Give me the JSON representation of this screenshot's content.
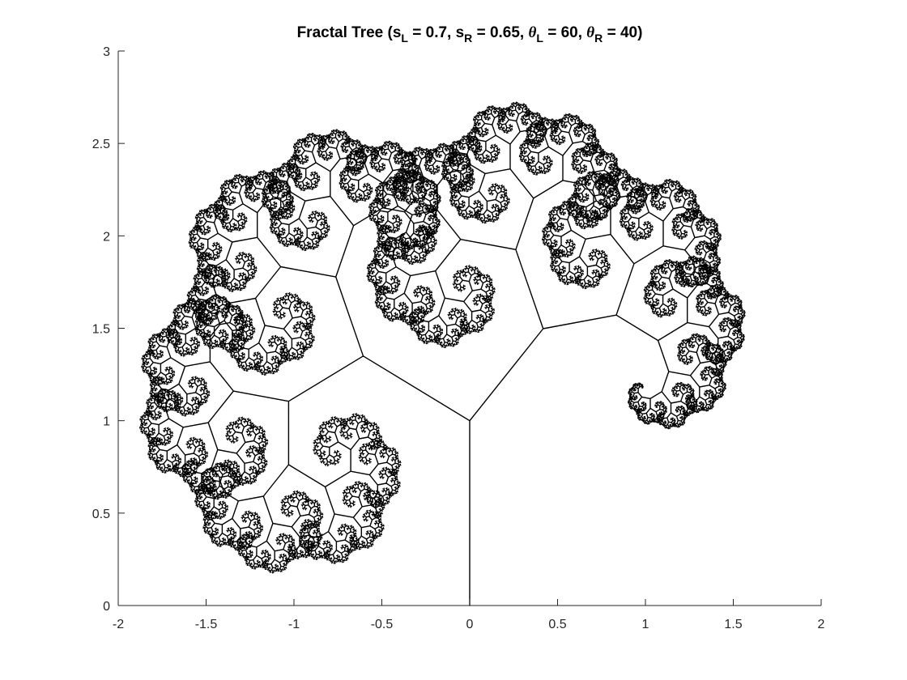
{
  "chart_data": {
    "type": "line",
    "title": {
      "prefix": "Fractal Tree (s",
      "sL_sub": "L",
      "sL_eq": " = 0.7, s",
      "sR_sub": "R",
      "sR_eq": " = 0.65, ",
      "theta": "θ",
      "thetaL_sub": "L",
      "thetaL_eq": " = 60, ",
      "thetaR_sub": "R",
      "suffix": " = 40)"
    },
    "parameters": {
      "sL": 0.7,
      "sR": 0.65,
      "thetaL_deg": 60,
      "thetaR_deg": 40,
      "trunk_base": [
        0,
        0
      ],
      "trunk_top": [
        0,
        1
      ]
    },
    "xlim": [
      -2,
      2
    ],
    "ylim": [
      0,
      3
    ],
    "xticks": [
      -2,
      -1.5,
      -1,
      -0.5,
      0,
      0.5,
      1,
      1.5,
      2
    ],
    "xtick_labels": [
      "-2",
      "-1.5",
      "-1",
      "-0.5",
      "0",
      "0.5",
      "1",
      "1.5",
      "2"
    ],
    "yticks": [
      0,
      0.5,
      1,
      1.5,
      2,
      2.5,
      3
    ],
    "ytick_labels": [
      "0",
      "0.5",
      "1",
      "1.5",
      "2",
      "2.5",
      "3"
    ],
    "series_color": "#000000",
    "grid": false,
    "box": "off"
  }
}
